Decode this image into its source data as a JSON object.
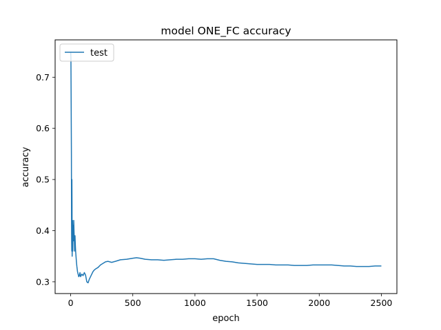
{
  "chart_data": {
    "type": "line",
    "title": "model ONE_FC accuracy",
    "xlabel": "epoch",
    "ylabel": "accuracy",
    "xlim": [
      -125,
      2625
    ],
    "ylim": [
      0.277,
      0.773
    ],
    "xticks": [
      0,
      500,
      1000,
      1500,
      2000,
      2500
    ],
    "xtick_labels": [
      "0",
      "500",
      "1000",
      "1500",
      "2000",
      "2500"
    ],
    "yticks": [
      0.3,
      0.4,
      0.5,
      0.6,
      0.7
    ],
    "ytick_labels": [
      "0.3",
      "0.4",
      "0.5",
      "0.6",
      "0.7"
    ],
    "grid": false,
    "legend_position": "upper-left",
    "colors": {
      "series": "#1f77b4"
    },
    "series": [
      {
        "name": "test",
        "points": [
          [
            0,
            0.75
          ],
          [
            2,
            0.74
          ],
          [
            4,
            0.65
          ],
          [
            6,
            0.55
          ],
          [
            7,
            0.42
          ],
          [
            8,
            0.38
          ],
          [
            9,
            0.36
          ],
          [
            10,
            0.5
          ],
          [
            11,
            0.45
          ],
          [
            12,
            0.35
          ],
          [
            13,
            0.37
          ],
          [
            15,
            0.42
          ],
          [
            17,
            0.36
          ],
          [
            20,
            0.41
          ],
          [
            22,
            0.38
          ],
          [
            25,
            0.42
          ],
          [
            27,
            0.4
          ],
          [
            30,
            0.38
          ],
          [
            32,
            0.36
          ],
          [
            35,
            0.39
          ],
          [
            38,
            0.37
          ],
          [
            40,
            0.36
          ],
          [
            43,
            0.35
          ],
          [
            46,
            0.34
          ],
          [
            50,
            0.33
          ],
          [
            55,
            0.32
          ],
          [
            60,
            0.315
          ],
          [
            65,
            0.31
          ],
          [
            70,
            0.312
          ],
          [
            75,
            0.318
          ],
          [
            80,
            0.31
          ],
          [
            90,
            0.315
          ],
          [
            100,
            0.312
          ],
          [
            110,
            0.318
          ],
          [
            120,
            0.313
          ],
          [
            130,
            0.3
          ],
          [
            140,
            0.298
          ],
          [
            150,
            0.305
          ],
          [
            160,
            0.31
          ],
          [
            170,
            0.315
          ],
          [
            180,
            0.32
          ],
          [
            190,
            0.323
          ],
          [
            200,
            0.325
          ],
          [
            220,
            0.328
          ],
          [
            240,
            0.333
          ],
          [
            260,
            0.336
          ],
          [
            280,
            0.339
          ],
          [
            300,
            0.34
          ],
          [
            330,
            0.338
          ],
          [
            360,
            0.34
          ],
          [
            400,
            0.343
          ],
          [
            450,
            0.344
          ],
          [
            500,
            0.346
          ],
          [
            530,
            0.347
          ],
          [
            560,
            0.346
          ],
          [
            600,
            0.344
          ],
          [
            650,
            0.343
          ],
          [
            700,
            0.343
          ],
          [
            750,
            0.342
          ],
          [
            800,
            0.343
          ],
          [
            850,
            0.344
          ],
          [
            900,
            0.344
          ],
          [
            950,
            0.345
          ],
          [
            1000,
            0.345
          ],
          [
            1050,
            0.344
          ],
          [
            1100,
            0.345
          ],
          [
            1150,
            0.345
          ],
          [
            1200,
            0.342
          ],
          [
            1250,
            0.34
          ],
          [
            1300,
            0.339
          ],
          [
            1350,
            0.337
          ],
          [
            1400,
            0.336
          ],
          [
            1450,
            0.335
          ],
          [
            1500,
            0.334
          ],
          [
            1550,
            0.334
          ],
          [
            1600,
            0.334
          ],
          [
            1650,
            0.333
          ],
          [
            1700,
            0.333
          ],
          [
            1750,
            0.333
          ],
          [
            1800,
            0.332
          ],
          [
            1850,
            0.332
          ],
          [
            1900,
            0.332
          ],
          [
            1950,
            0.333
          ],
          [
            2000,
            0.333
          ],
          [
            2050,
            0.333
          ],
          [
            2100,
            0.333
          ],
          [
            2150,
            0.332
          ],
          [
            2200,
            0.331
          ],
          [
            2250,
            0.331
          ],
          [
            2300,
            0.33
          ],
          [
            2350,
            0.33
          ],
          [
            2400,
            0.33
          ],
          [
            2450,
            0.331
          ],
          [
            2500,
            0.331
          ]
        ]
      }
    ]
  }
}
